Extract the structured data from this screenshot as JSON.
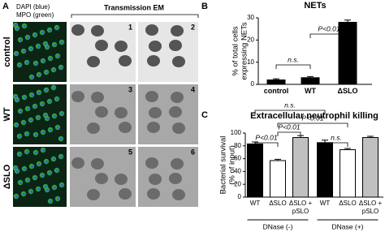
{
  "panel_a": {
    "label": "A",
    "stain_line1": "DAPI (blue)",
    "stain_line2": "MPO (green)",
    "em_header": "Transmission EM",
    "rows": [
      "control",
      "WT",
      "ΔSLO"
    ],
    "image_numbers": [
      "1",
      "2",
      "3",
      "4",
      "5",
      "6"
    ]
  },
  "chart_data": [
    {
      "type": "bar",
      "panel": "B",
      "title": "NETs",
      "ylabel": [
        "% of total cells",
        "expressing NETs"
      ],
      "categories": [
        "control",
        "WT",
        "ΔSLO"
      ],
      "values": [
        2,
        3,
        28
      ],
      "errors": [
        0.5,
        0.5,
        1
      ],
      "colors": [
        "#000000",
        "#000000",
        "#000000"
      ],
      "ylim": [
        0,
        30
      ],
      "yticks": [
        0,
        10,
        20,
        30
      ],
      "annotations": [
        "n.s.",
        "P<0.01"
      ]
    },
    {
      "type": "bar",
      "panel": "C",
      "title": "Extracellular neutrophil killing",
      "ylabel": [
        "Bacterial survival",
        "(% of input)"
      ],
      "categories": [
        "WT",
        "ΔSLO",
        "ΔSLO + pSLO",
        "WT",
        "ΔSLO",
        "ΔSLO + pSLO"
      ],
      "groups": [
        "DNase (-)",
        "DNase (+)"
      ],
      "values": [
        83,
        57,
        93,
        85,
        74,
        93
      ],
      "errors": [
        3,
        2,
        3,
        4,
        2,
        2
      ],
      "colors": [
        "#000000",
        "#ffffff",
        "#c0c0c0",
        "#000000",
        "#ffffff",
        "#c0c0c0"
      ],
      "ylim": [
        0,
        100
      ],
      "yticks": [
        0,
        20,
        40,
        60,
        80,
        100
      ],
      "annotations": [
        "n.s.",
        "P<0.01",
        "P<0.01",
        "P<0.01",
        "n.s."
      ]
    }
  ]
}
